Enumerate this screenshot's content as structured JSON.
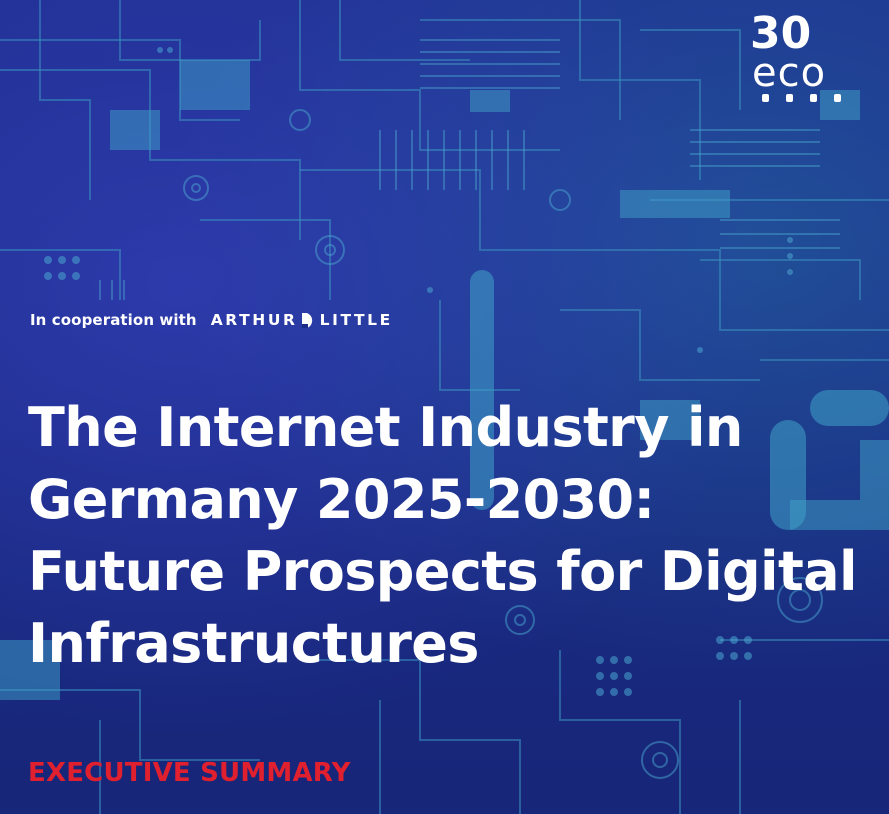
{
  "brand": {
    "logo_number": "30",
    "logo_word": "eco",
    "logo_name": "eco-30-logo"
  },
  "cooperation": {
    "text": "In cooperation with",
    "partner_part1": "ARTHUR",
    "partner_part2": "LITTLE",
    "partner_name": "arthur-d-little-logo"
  },
  "title": {
    "lines": [
      "The Internet Industry in",
      "Germany 2025-2030:",
      "Future Prospects for Digital",
      "Infrastructures"
    ]
  },
  "subtitle": "EXECUTIVE SUMMARY",
  "colors": {
    "background": "#1a2a8a",
    "accent_red": "#e0202e",
    "circuit": "#3fa2c8",
    "text": "#ffffff"
  }
}
